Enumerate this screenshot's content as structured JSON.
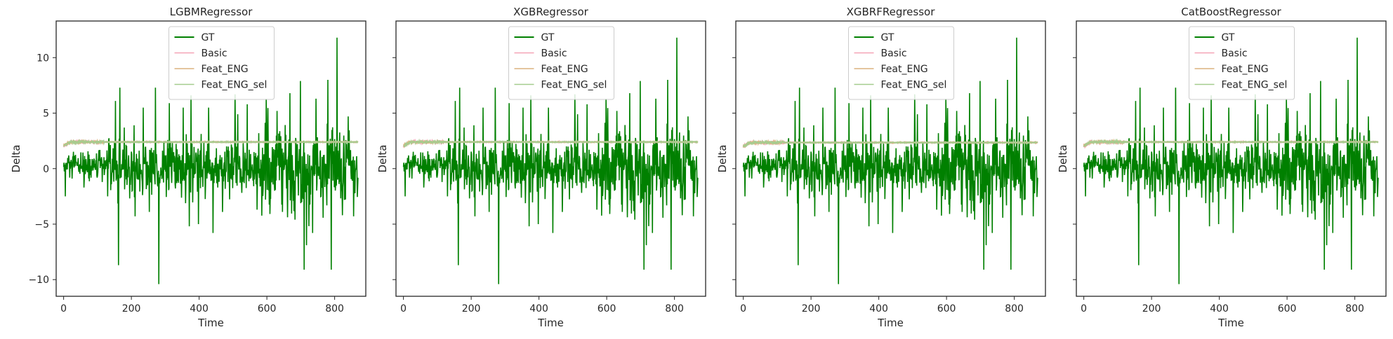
{
  "figure": {
    "shared_y_axis": true,
    "xlabel": "Time",
    "ylabel": "Delta"
  },
  "colors": {
    "GT": "#008000",
    "Basic": "#f4a3b5",
    "Feat_ENG": "#dcb27f",
    "Feat_ENG_sel": "#a4cc8e",
    "axes_frame": "#262626",
    "background": "#ffffff"
  },
  "legend": {
    "position": "upper center",
    "entries": [
      "GT",
      "Basic",
      "Feat_ENG",
      "Feat_ENG_sel"
    ]
  },
  "chart_data": [
    {
      "type": "line",
      "title": "LGBMRegressor",
      "xlabel": "Time",
      "ylabel": "Delta",
      "xlim": [
        -22,
        892
      ],
      "ylim": [
        -11.5,
        13.3
      ],
      "xticks": [
        0,
        200,
        400,
        600,
        800
      ],
      "yticks": [
        -10,
        -5,
        0,
        5,
        10
      ],
      "ytick_labels": [
        "−10",
        "−5",
        "0",
        "5",
        "10"
      ],
      "show_ytick_labels": true,
      "show_ylabel": true,
      "grid": false,
      "legend": "upper center",
      "series": [
        {
          "name": "GT",
          "n_points": 870,
          "description": "noisy signal, mostly within ±3 with spikes",
          "spikes": [
            [
              5,
              -2.5
            ],
            [
              60,
              -1.7
            ],
            [
              130,
              -2.5
            ],
            [
              153,
              6.1
            ],
            [
              162,
              -8.7
            ],
            [
              166,
              7.3
            ],
            [
              179,
              3.7
            ],
            [
              202,
              -2.0
            ],
            [
              211,
              -4.3
            ],
            [
              235,
              5.5
            ],
            [
              253,
              -3.9
            ],
            [
              271,
              7.3
            ],
            [
              281,
              -10.4
            ],
            [
              312,
              5.9
            ],
            [
              353,
              5.5
            ],
            [
              371,
              -5.2
            ],
            [
              376,
              6.6
            ],
            [
              398,
              -5.0
            ],
            [
              428,
              5.5
            ],
            [
              441,
              -5.8
            ],
            [
              469,
              -3.9
            ],
            [
              506,
              6.7
            ],
            [
              514,
              4.9
            ],
            [
              542,
              5.8
            ],
            [
              571,
              -3.7
            ],
            [
              598,
              6.3
            ],
            [
              630,
              5.2
            ],
            [
              646,
              -3.9
            ],
            [
              668,
              6.8
            ],
            [
              683,
              -4.6
            ],
            [
              699,
              7.9
            ],
            [
              710,
              -9.1
            ],
            [
              717,
              -6.9
            ],
            [
              735,
              -5.8
            ],
            [
              745,
              6.3
            ],
            [
              760,
              -2.5
            ],
            [
              780,
              8.0
            ],
            [
              790,
              -9.1
            ],
            [
              807,
              11.8
            ],
            [
              823,
              -4.2
            ],
            [
              840,
              4.7
            ],
            [
              856,
              -4.3
            ]
          ]
        },
        {
          "name": "Basic",
          "level": 2.4,
          "start": 2.0
        },
        {
          "name": "Feat_ENG",
          "level": 2.4,
          "start": 2.1
        },
        {
          "name": "Feat_ENG_sel",
          "level": 2.4,
          "start": 2.0
        }
      ]
    },
    {
      "type": "line",
      "title": "XGBRegressor",
      "xlabel": "Time",
      "ylabel": "Delta",
      "xlim": [
        -22,
        892
      ],
      "ylim": [
        -11.5,
        13.3
      ],
      "xticks": [
        0,
        200,
        400,
        600,
        800
      ],
      "yticks": [
        -10,
        -5,
        0,
        5,
        10
      ],
      "ytick_labels": [
        "−10",
        "−5",
        "0",
        "5",
        "10"
      ],
      "show_ytick_labels": false,
      "show_ylabel": true,
      "grid": false,
      "legend": "upper center",
      "series": [
        {
          "name": "GT",
          "n_points": 870,
          "description": "same signal as first panel"
        },
        {
          "name": "Basic",
          "level": 2.4,
          "start": 2.0
        },
        {
          "name": "Feat_ENG",
          "level": 2.4,
          "start": 2.1
        },
        {
          "name": "Feat_ENG_sel",
          "level": 2.4,
          "start": 2.0
        }
      ]
    },
    {
      "type": "line",
      "title": "XGBRFRegressor",
      "xlabel": "Time",
      "ylabel": "Delta",
      "xlim": [
        -22,
        892
      ],
      "ylim": [
        -11.5,
        13.3
      ],
      "xticks": [
        0,
        200,
        400,
        600,
        800
      ],
      "yticks": [
        -10,
        -5,
        0,
        5,
        10
      ],
      "ytick_labels": [
        "−10",
        "−5",
        "0",
        "5",
        "10"
      ],
      "show_ytick_labels": false,
      "show_ylabel": true,
      "grid": false,
      "legend": "upper center",
      "series": [
        {
          "name": "GT",
          "n_points": 870,
          "description": "same signal as first panel"
        },
        {
          "name": "Basic",
          "level": 2.35,
          "start": 2.0
        },
        {
          "name": "Feat_ENG",
          "level": 2.35,
          "start": 2.0
        },
        {
          "name": "Feat_ENG_sel",
          "level": 2.35,
          "start": 2.0
        }
      ]
    },
    {
      "type": "line",
      "title": "CatBoostRegressor",
      "xlabel": "Time",
      "ylabel": "Delta",
      "xlim": [
        -22,
        892
      ],
      "ylim": [
        -11.5,
        13.3
      ],
      "xticks": [
        0,
        200,
        400,
        600,
        800
      ],
      "yticks": [
        -10,
        -5,
        0,
        5,
        10
      ],
      "ytick_labels": [
        "−10",
        "−5",
        "0",
        "5",
        "10"
      ],
      "show_ytick_labels": false,
      "show_ylabel": true,
      "grid": false,
      "legend": "upper center",
      "series": [
        {
          "name": "GT",
          "n_points": 870,
          "description": "same signal as first panel"
        },
        {
          "name": "Basic",
          "level": 2.4,
          "start": 2.0
        },
        {
          "name": "Feat_ENG",
          "level": 2.4,
          "start": 2.1
        },
        {
          "name": "Feat_ENG_sel",
          "level": 2.4,
          "start": 2.0
        }
      ]
    }
  ]
}
